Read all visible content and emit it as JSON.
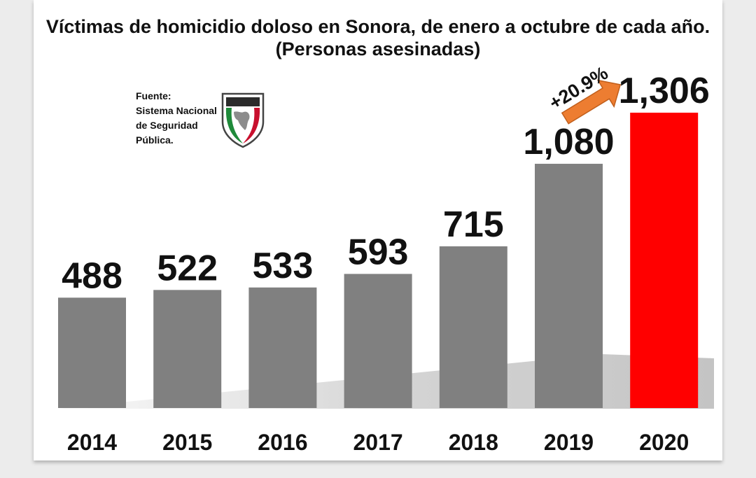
{
  "title": "Víctimas de homicidio doloso en Sonora, de enero a octubre de cada año. (Personas asesinadas)",
  "source": {
    "lines": [
      "Fuente:",
      "Sistema Nacional",
      "de Seguridad",
      "Pública."
    ],
    "logo_text": "SISTEMA NACIONAL DE SEGURIDAD PÚBLICA"
  },
  "chart_data": {
    "type": "bar",
    "title": "Víctimas de homicidio doloso en Sonora, de enero a octubre de cada año. (Personas asesinadas)",
    "categories": [
      "2014",
      "2015",
      "2016",
      "2017",
      "2018",
      "2019",
      "2020"
    ],
    "values": [
      488,
      522,
      533,
      593,
      715,
      1080,
      1306
    ],
    "value_labels": [
      "488",
      "522",
      "533",
      "593",
      "715",
      "1,080",
      "1,306"
    ],
    "xlabel": "",
    "ylabel": "",
    "ylim": [
      0,
      1306
    ],
    "grid": false,
    "legend": "none",
    "colors": {
      "default": "#808080",
      "highlight": "#ff0000"
    },
    "highlight_category": "2020",
    "annotation": {
      "text": "+20.9%",
      "from": "2019",
      "to": "2020",
      "arrow_color": "#ed7d31"
    }
  }
}
